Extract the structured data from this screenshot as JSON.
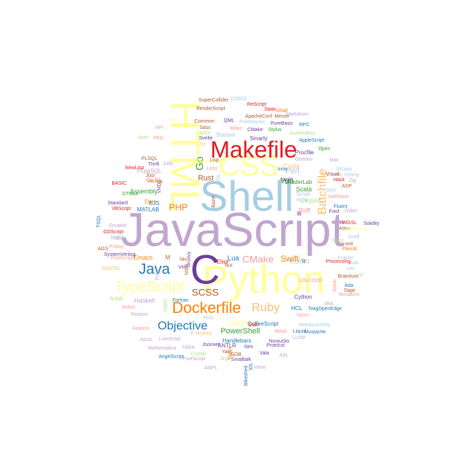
{
  "colors": {
    "background": "#ffffff",
    "purple_light": "#c2a5cf",
    "purple_dark": "#6a3d9a",
    "blue_light": "#a6cee3",
    "blue_dark": "#1f78b4",
    "green_light": "#b2df8a",
    "green_dark": "#33a02c",
    "pink": "#fb9a99",
    "red": "#e31a1c",
    "orange_light": "#fdbf6f",
    "orange": "#ff7f00",
    "yellow": "#ffff99",
    "brown": "#b15928"
  },
  "words": [
    {
      "text": "JavaScript"
    },
    {
      "text": "Shell"
    },
    {
      "text": "Python"
    },
    {
      "text": "C"
    },
    {
      "text": "HTML"
    },
    {
      "text": "CSS"
    },
    {
      "text": "Makefile"
    },
    {
      "text": "Dockerfile"
    },
    {
      "text": "TypeScript"
    },
    {
      "text": "Java"
    },
    {
      "text": "Objective"
    },
    {
      "text": "Batchfile"
    },
    {
      "text": "Ruby"
    },
    {
      "text": "SCSS"
    },
    {
      "text": "CMake"
    },
    {
      "text": "PHP"
    },
    {
      "text": "Go"
    },
    {
      "text": "Kotlin"
    },
    {
      "text": "Swift"
    },
    {
      "text": "Perl"
    },
    {
      "text": "Rust"
    },
    {
      "text": "Vue"
    },
    {
      "text": "Lua"
    },
    {
      "text": "Jupyter"
    },
    {
      "text": "PowerShell"
    },
    {
      "text": "Cuda"
    },
    {
      "text": "Scala"
    },
    {
      "text": "Roff"
    },
    {
      "text": "Clojure"
    },
    {
      "text": "Assembly"
    },
    {
      "text": "Emacs"
    },
    {
      "text": "Haskell"
    },
    {
      "text": "GLSL"
    },
    {
      "text": "Dart"
    },
    {
      "text": "EJS"
    },
    {
      "text": "MATLAB"
    },
    {
      "text": "PLpgSQL"
    },
    {
      "text": "PLSQL"
    },
    {
      "text": "Handlebars"
    },
    {
      "text": "Cython"
    },
    {
      "text": "HCL"
    },
    {
      "text": "TwigOpenEdge"
    },
    {
      "text": "CoffeeScript"
    },
    {
      "text": "WebAssembly"
    },
    {
      "text": "Smarty"
    },
    {
      "text": "Starlark"
    },
    {
      "text": "ShaderLab"
    },
    {
      "text": "Procfile"
    },
    {
      "text": "Gherkin"
    },
    {
      "text": "Open"
    },
    {
      "text": "AppleScript"
    },
    {
      "text": "AutoHotkey"
    },
    {
      "text": "Stylus"
    },
    {
      "text": "PureBasic"
    },
    {
      "text": "RPC"
    },
    {
      "text": "Meson"
    },
    {
      "text": "ApacheConf"
    },
    {
      "text": "ReScript"
    },
    {
      "text": "COBOL"
    },
    {
      "text": "SuperCollider"
    },
    {
      "text": "RenderScript"
    },
    {
      "text": "Stata"
    },
    {
      "text": "Dhall"
    },
    {
      "text": "Markdown"
    },
    {
      "text": "QML"
    },
    {
      "text": "Common"
    },
    {
      "text": "Sass"
    },
    {
      "text": "FreeMarker"
    },
    {
      "text": "CMake"
    },
    {
      "text": "Mako"
    },
    {
      "text": "MDX"
    },
    {
      "text": "Svelte"
    },
    {
      "text": "Tcl"
    },
    {
      "text": "API"
    },
    {
      "text": "Apex"
    },
    {
      "text": "PEG"
    },
    {
      "text": "Thrift"
    },
    {
      "text": "Julia"
    },
    {
      "text": "NewLisp"
    },
    {
      "text": "Just"
    },
    {
      "text": "Verilog"
    },
    {
      "text": "BASIC"
    },
    {
      "text": "DTrace"
    },
    {
      "text": "Standard"
    },
    {
      "text": "VBScript"
    },
    {
      "text": "Gnuplot"
    },
    {
      "text": "GDScript"
    },
    {
      "text": "Raku"
    },
    {
      "text": "Prolog"
    },
    {
      "text": "AGS"
    },
    {
      "text": "PostScript"
    },
    {
      "text": "DIGITAL"
    },
    {
      "text": "Scilab"
    },
    {
      "text": "Rebol"
    },
    {
      "text": "Arduino"
    },
    {
      "text": "Reason"
    },
    {
      "text": "SystemVerilog"
    },
    {
      "text": "Logos"
    },
    {
      "text": "NASL"
    },
    {
      "text": "LiveScript"
    },
    {
      "text": "Mathematica"
    },
    {
      "text": "AngelScript"
    },
    {
      "text": "PureScript"
    },
    {
      "text": "Crystal"
    },
    {
      "text": "YARA"
    },
    {
      "text": "Jsonnet"
    },
    {
      "text": "ANTLR"
    },
    {
      "text": "Yacc"
    },
    {
      "text": "GDB"
    },
    {
      "text": "Nim"
    },
    {
      "text": "Smalltalk"
    },
    {
      "text": "Vala"
    },
    {
      "text": "Protocol"
    },
    {
      "text": "Metal"
    },
    {
      "text": "Liquid"
    },
    {
      "text": "Mustache"
    },
    {
      "text": "LLVM"
    },
    {
      "text": "ASL"
    },
    {
      "text": "Haxe"
    },
    {
      "text": "AMPL"
    },
    {
      "text": "IDL"
    },
    {
      "text": "Bikeshed"
    },
    {
      "text": "Nginx"
    },
    {
      "text": "Starr"
    },
    {
      "text": "Nunjucks"
    },
    {
      "text": "Rich"
    },
    {
      "text": "Fortran"
    },
    {
      "text": "SWIG"
    },
    {
      "text": "NSIS"
    },
    {
      "text": "Groovy"
    },
    {
      "text": "Vim"
    },
    {
      "text": "Nix"
    },
    {
      "text": "M"
    },
    {
      "text": "Elixir"
    },
    {
      "text": "TeX"
    },
    {
      "text": "R"
    },
    {
      "text": "Awk"
    },
    {
      "text": "Lex"
    },
    {
      "text": "Brainfuck"
    },
    {
      "text": "Sage"
    },
    {
      "text": "Ada"
    },
    {
      "text": "VBA"
    },
    {
      "text": "Slim"
    },
    {
      "text": "Visual"
    },
    {
      "text": "Hack"
    },
    {
      "text": "Zig"
    },
    {
      "text": "ASP"
    },
    {
      "text": "SaltStack"
    },
    {
      "text": "Fluent"
    },
    {
      "text": "Ford"
    },
    {
      "text": "WGSL"
    },
    {
      "text": "Solidity"
    },
    {
      "text": "Astro"
    },
    {
      "text": "ColdFusion"
    },
    {
      "text": "sed"
    },
    {
      "text": "Pascal"
    },
    {
      "text": "Graff"
    },
    {
      "text": "Puppet"
    },
    {
      "text": "Processing"
    },
    {
      "text": "OCaml"
    },
    {
      "text": "Erlang"
    },
    {
      "text": "Max"
    },
    {
      "text": "Smali"
    },
    {
      "text": "SmPL"
    },
    {
      "text": "HLSL"
    },
    {
      "text": "AIDL"
    },
    {
      "text": "Less"
    },
    {
      "text": "Bazel"
    },
    {
      "text": "Inno"
    },
    {
      "text": "Blade"
    },
    {
      "text": "jq"
    },
    {
      "text": "Terraform"
    },
    {
      "text": "Mermaid"
    },
    {
      "text": "Dylan"
    },
    {
      "text": "TSQL"
    },
    {
      "text": "VHDL"
    },
    {
      "text": "RobotFramework"
    },
    {
      "text": "Lisp"
    },
    {
      "text": "Pug"
    },
    {
      "text": "F"
    },
    {
      "text": "Nearley"
    },
    {
      "text": "Jinja"
    },
    {
      "text": "Hjson"
    },
    {
      "text": "Nu"
    },
    {
      "text": "Ruby"
    },
    {
      "text": "LOLCODE"
    },
    {
      "text": "Vue"
    },
    {
      "text": "PowerBuilder"
    }
  ]
}
